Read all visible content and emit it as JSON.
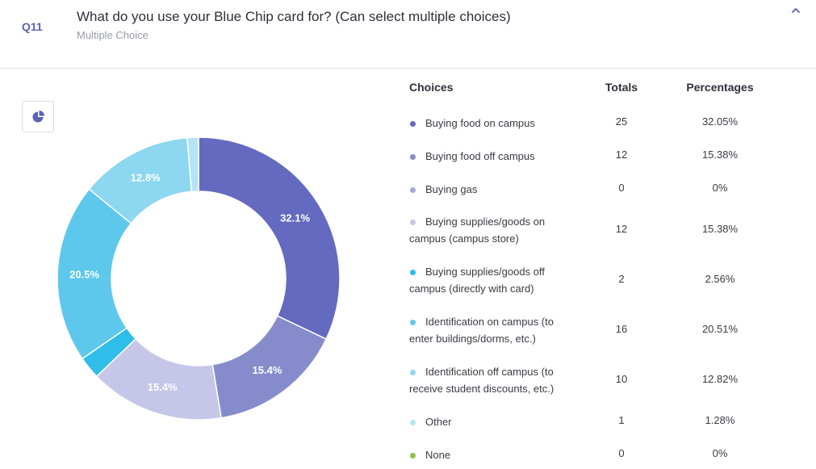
{
  "question": {
    "number": "Q11",
    "title": "What do you use your Blue Chip card for? (Can select multiple choices)",
    "type": "Multiple Choice",
    "collapse_icon": "chevron-up-icon",
    "chart_toggle_icon": "pie-chart-icon"
  },
  "table": {
    "headers": {
      "choices": "Choices",
      "totals": "Totals",
      "percentages": "Percentages"
    },
    "rows": [
      {
        "choice": "Buying food on campus",
        "total": "25",
        "pct": "32.05%",
        "color": "#646ac0"
      },
      {
        "choice": "Buying food off campus",
        "total": "12",
        "pct": "15.38%",
        "color": "#868ccb"
      },
      {
        "choice": "Buying gas",
        "total": "0",
        "pct": "0%",
        "color": "#a4a8d9"
      },
      {
        "choice": "Buying supplies/goods on campus (campus store)",
        "total": "12",
        "pct": "15.38%",
        "color": "#c5c6e8"
      },
      {
        "choice": "Buying supplies/goods off campus (directly with card)",
        "total": "2",
        "pct": "2.56%",
        "color": "#2fbde9"
      },
      {
        "choice": "Identification on campus (to enter buildings/dorms, etc.)",
        "total": "16",
        "pct": "20.51%",
        "color": "#5ec8ec"
      },
      {
        "choice": "Identification off campus (to receive student discounts, etc.)",
        "total": "10",
        "pct": "12.82%",
        "color": "#8dd7f1"
      },
      {
        "choice": "Other",
        "total": "1",
        "pct": "1.28%",
        "color": "#b5e3f5"
      },
      {
        "choice": "None",
        "total": "0",
        "pct": "0%",
        "color": "#8bc34a"
      }
    ]
  },
  "chart_data": {
    "type": "pie",
    "donut": true,
    "categories": [
      "Buying food on campus",
      "Buying food off campus",
      "Buying gas",
      "Buying supplies/goods on campus (campus store)",
      "Buying supplies/goods off campus (directly with card)",
      "Identification on campus (to enter buildings/dorms, etc.)",
      "Identification off campus (to receive student discounts, etc.)",
      "Other",
      "None"
    ],
    "values": [
      25,
      12,
      0,
      12,
      2,
      16,
      10,
      1,
      0
    ],
    "slice_labels": [
      "32.1%",
      "15.4%",
      "",
      "15.4%",
      "",
      "20.5%",
      "12.8%",
      "",
      ""
    ],
    "colors": [
      "#646ac0",
      "#868ccb",
      "#a4a8d9",
      "#c5c6e8",
      "#2fbde9",
      "#5ec8ec",
      "#8dd7f1",
      "#b5e3f5",
      "#8bc34a"
    ]
  }
}
